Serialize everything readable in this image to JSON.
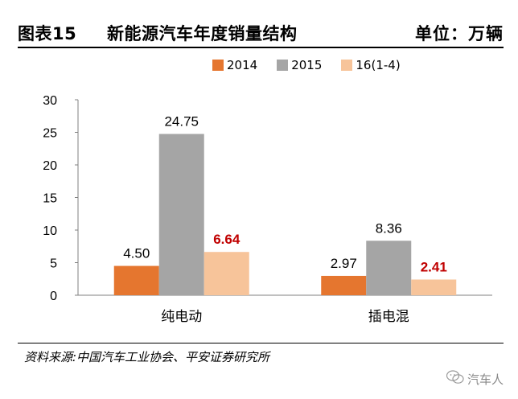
{
  "header": {
    "fig_label": "图表15",
    "title": "新能源汽车年度销量结构",
    "unit": "单位：万辆"
  },
  "chart_data": {
    "type": "bar",
    "categories": [
      "纯电动",
      "插电混"
    ],
    "series": [
      {
        "name": "2014",
        "values": [
          4.5,
          2.97
        ],
        "labels": [
          "4.50",
          "2.97"
        ],
        "color": "#e5762f",
        "label_color": "#000000"
      },
      {
        "name": "2015",
        "values": [
          24.75,
          8.36
        ],
        "labels": [
          "24.75",
          "8.36"
        ],
        "color": "#a5a5a5",
        "label_color": "#000000"
      },
      {
        "name": "16(1-4)",
        "values": [
          6.64,
          2.41
        ],
        "labels": [
          "6.64",
          "2.41"
        ],
        "color": "#f7c49a",
        "label_color": "#c00000"
      }
    ],
    "ylim": [
      0,
      30
    ],
    "yticks": [
      "0",
      "5",
      "10",
      "15",
      "20",
      "25",
      "30"
    ],
    "grid": false,
    "legend": "top-center"
  },
  "source": "资料来源:中国汽车工业协会、平安证券研究所",
  "watermark": "汽车人"
}
